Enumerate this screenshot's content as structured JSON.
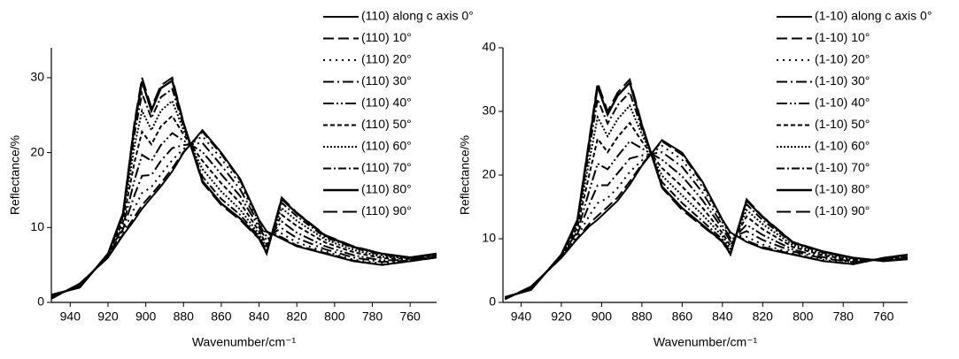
{
  "chart_data": [
    {
      "type": "line",
      "x_label": "Wavenumber/cm⁻¹",
      "y_label": "Reflectance/%",
      "xlim": [
        950,
        746
      ],
      "ylim": [
        0,
        34
      ],
      "xticks": [
        940,
        920,
        900,
        880,
        860,
        840,
        820,
        800,
        780,
        760
      ],
      "yticks": [
        0,
        10,
        20,
        30
      ],
      "x": [
        950,
        935,
        920,
        912,
        906,
        902,
        897,
        892,
        886,
        880,
        870,
        860,
        850,
        840,
        836,
        828,
        820,
        805,
        790,
        775,
        760,
        746
      ],
      "series": [
        {
          "name": "(110) along c axis 0°",
          "color": "#000000",
          "values": [
            0.5,
            2.5,
            6,
            9,
            11,
            12.5,
            14,
            15.5,
            17.5,
            20,
            23,
            20,
            16.5,
            11,
            9.5,
            8.5,
            7.5,
            6.5,
            5.5,
            5,
            5.5,
            6
          ]
        },
        {
          "name": "(110) 10°",
          "color": "#000000",
          "values": [
            0.5,
            2.5,
            6.0,
            9.1,
            11.4,
            13.0,
            14.4,
            15.9,
            17.9,
            20.1,
            22.8,
            19.8,
            16.3,
            10.9,
            9.4,
            8.7,
            7.6,
            6.6,
            5.6,
            5.0,
            5.5,
            6.0
          ]
        },
        {
          "name": "(110) 20°",
          "color": "#000000",
          "values": [
            0.6,
            2.4,
            6.1,
            9.4,
            12.6,
            14.6,
            15.4,
            17.1,
            19.0,
            20.5,
            22.2,
            19.2,
            15.8,
            10.7,
            9.1,
            9.2,
            8.0,
            6.8,
            5.7,
            5.2,
            5.6,
            6.1
          ]
        },
        {
          "name": "(110) 30°",
          "color": "#000000",
          "values": [
            0.6,
            2.4,
            6.1,
            9.8,
            14.3,
            16.9,
            17.0,
            18.9,
            20.6,
            21.0,
            21.3,
            18.3,
            15.1,
            10.4,
            8.8,
            9.9,
            8.6,
            7.1,
            6.0,
            5.4,
            5.6,
            6.1
          ]
        },
        {
          "name": "(110) 40°",
          "color": "#000000",
          "values": [
            0.7,
            2.3,
            6.2,
            10.2,
            16.3,
            19.7,
            18.9,
            21.0,
            22.6,
            21.6,
            20.1,
            17.1,
            14.2,
            10.0,
            8.3,
            10.8,
            9.3,
            7.5,
            6.3,
            5.6,
            5.7,
            6.2
          ]
        },
        {
          "name": "(110) 50°",
          "color": "#000000",
          "values": [
            0.8,
            2.2,
            6.3,
            10.8,
            18.7,
            22.8,
            21.1,
            23.5,
            24.9,
            22.4,
            18.9,
            15.9,
            13.3,
            9.5,
            7.7,
            11.7,
            10.2,
            8.0,
            6.7,
            5.9,
            5.8,
            6.3
          ]
        },
        {
          "name": "(110) 60°",
          "color": "#000000",
          "values": [
            0.9,
            2.1,
            6.4,
            11.3,
            20.8,
            25.6,
            23.0,
            25.6,
            26.9,
            23.0,
            17.8,
            14.8,
            12.4,
            9.1,
            7.3,
            12.6,
            10.9,
            8.4,
            7.0,
            6.1,
            5.9,
            6.4
          ]
        },
        {
          "name": "(110) 70°",
          "color": "#000000",
          "values": [
            0.9,
            2.1,
            6.4,
            11.6,
            22.4,
            27.9,
            24.6,
            27.4,
            28.5,
            23.5,
            16.8,
            13.8,
            11.7,
            8.8,
            6.9,
            13.3,
            11.5,
            8.7,
            7.3,
            6.3,
            5.9,
            6.4
          ]
        },
        {
          "name": "(110) 80°",
          "color": "#000000",
          "values": [
            1.0,
            2.0,
            6.5,
            11.9,
            23.6,
            29.5,
            25.6,
            28.6,
            29.6,
            23.9,
            16.2,
            13.2,
            11.2,
            8.6,
            6.6,
            13.8,
            11.9,
            8.9,
            7.4,
            6.5,
            6.0,
            6.5
          ]
        },
        {
          "name": "(110) 90°",
          "color": "#000000",
          "values": [
            1,
            2,
            6.5,
            12,
            24,
            30,
            26,
            29,
            30,
            24,
            16,
            13,
            11,
            8.5,
            6.5,
            14,
            12,
            9,
            7.5,
            6.5,
            6,
            6.5
          ]
        }
      ]
    },
    {
      "type": "line",
      "x_label": "Wavenumber/cm⁻¹",
      "y_label": "Reflectance/%",
      "xlim": [
        949,
        748
      ],
      "ylim": [
        0,
        40
      ],
      "xticks": [
        940,
        920,
        900,
        880,
        860,
        840,
        820,
        800,
        780,
        760
      ],
      "yticks": [
        0,
        10,
        20,
        30,
        40
      ],
      "x": [
        948,
        935,
        920,
        912,
        906,
        902,
        897,
        892,
        886,
        880,
        870,
        860,
        850,
        840,
        836,
        828,
        820,
        805,
        790,
        775,
        760,
        748
      ],
      "series": [
        {
          "name": "(1-10) along c axis 0°",
          "color": "#000000",
          "values": [
            0.5,
            2.5,
            7,
            10,
            12,
            13,
            14.5,
            16,
            18.5,
            21.5,
            25.5,
            23.5,
            19,
            13,
            11,
            9.5,
            8.5,
            7.5,
            6.5,
            6,
            7,
            7.5
          ]
        },
        {
          "name": "(1-10) 10°",
          "color": "#000000",
          "values": [
            0.5,
            2.5,
            7.0,
            10.1,
            12.4,
            13.6,
            15.0,
            16.5,
            19.0,
            21.7,
            25.3,
            23.2,
            18.8,
            12.9,
            10.9,
            9.7,
            8.7,
            7.6,
            6.5,
            6.0,
            7.0,
            7.5
          ]
        },
        {
          "name": "(1-10) 20°",
          "color": "#000000",
          "values": [
            0.5,
            2.4,
            7.1,
            10.4,
            13.7,
            15.6,
            16.4,
            18.0,
            20.5,
            22.3,
            24.6,
            22.4,
            18.2,
            12.6,
            10.6,
            10.3,
            9.1,
            7.7,
            6.7,
            6.1,
            6.9,
            7.4
          ]
        },
        {
          "name": "(1-10) 30°",
          "color": "#000000",
          "values": [
            0.6,
            2.4,
            7.1,
            10.8,
            15.5,
            18.4,
            18.4,
            20.3,
            22.6,
            23.1,
            23.6,
            21.3,
            17.3,
            12.1,
            10.1,
            11.2,
            9.8,
            8.0,
            6.9,
            6.3,
            6.9,
            7.3
          ]
        },
        {
          "name": "(1-10) 40°",
          "color": "#000000",
          "values": [
            0.6,
            2.3,
            7.2,
            11.2,
            17.7,
            21.8,
            20.9,
            23.0,
            25.3,
            24.2,
            22.4,
            19.8,
            16.1,
            11.6,
            9.6,
            12.2,
            10.6,
            8.3,
            7.1,
            6.4,
            6.8,
            7.2
          ]
        },
        {
          "name": "(1-10) 50°",
          "color": "#000000",
          "values": [
            0.7,
            2.2,
            7.3,
            11.8,
            20.3,
            25.7,
            23.6,
            26.0,
            28.2,
            25.3,
            21.1,
            18.2,
            14.9,
            10.9,
            8.9,
            13.5,
            11.5,
            8.7,
            7.4,
            6.6,
            6.7,
            7.1
          ]
        },
        {
          "name": "(1-10) 60°",
          "color": "#000000",
          "values": [
            0.7,
            2.1,
            7.4,
            12.3,
            22.5,
            29.1,
            26.1,
            28.8,
            30.9,
            26.4,
            19.9,
            16.8,
            13.8,
            10.4,
            8.4,
            14.5,
            12.3,
            9.0,
            7.6,
            6.8,
            6.6,
            7.0
          ]
        },
        {
          "name": "(1-10) 70°",
          "color": "#000000",
          "values": [
            0.8,
            2.1,
            7.4,
            12.6,
            24.3,
            31.9,
            28.1,
            31.0,
            33.0,
            27.2,
            18.9,
            15.6,
            12.8,
            9.9,
            7.9,
            15.4,
            12.9,
            9.3,
            7.8,
            6.9,
            6.6,
            6.9
          ]
        },
        {
          "name": "(1-10) 80°",
          "color": "#000000",
          "values": [
            0.8,
            2.0,
            7.5,
            12.9,
            25.6,
            33.9,
            29.5,
            32.5,
            34.5,
            27.8,
            18.2,
            14.8,
            12.2,
            9.6,
            7.6,
            16.0,
            13.4,
            9.4,
            8.0,
            7.0,
            6.5,
            6.8
          ]
        },
        {
          "name": "(1-10) 90°",
          "color": "#000000",
          "values": [
            0.8,
            2,
            7.5,
            13,
            26,
            34.5,
            30,
            33,
            35,
            28,
            18,
            14.5,
            12,
            9.5,
            7.5,
            16.2,
            13.5,
            9.5,
            8,
            7,
            6.5,
            6.8
          ]
        }
      ]
    }
  ]
}
